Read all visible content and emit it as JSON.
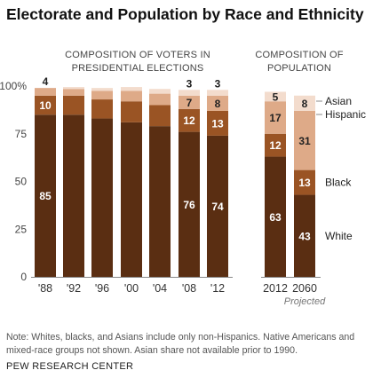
{
  "title": "Electorate and Population by Race and Ethnicity",
  "subtitle_voters": "COMPOSITION OF VOTERS IN PRESIDENTIAL ELECTIONS",
  "subtitle_population": "COMPOSITION OF POPULATION",
  "note": "Note: Whites, blacks, and Asians include only non-Hispanics. Native Americans and mixed-race groups not shown. Asian share not available prior to 1990.",
  "source": "PEW RESEARCH CENTER",
  "colors": {
    "White": "#5a2e12",
    "Black": "#9a5424",
    "Hispanic": "#deaa88",
    "Asian": "#f3dccd"
  },
  "chart_data": {
    "type": "bar",
    "stacked": true,
    "ylim": [
      0,
      100
    ],
    "yticks": [
      "0",
      "25",
      "50",
      "75",
      "100%"
    ],
    "ytick_values": [
      0,
      25,
      50,
      75,
      100
    ],
    "grid": false,
    "categories": [
      "'88",
      "'92",
      "'96",
      "'00",
      "'04",
      "'08",
      "'12",
      "2012",
      "2060"
    ],
    "category_note": {
      "2060": "Projected"
    },
    "panels": [
      {
        "subtitle": "COMPOSITION OF VOTERS IN PRESIDENTIAL ELECTIONS",
        "categories": [
          "'88",
          "'92",
          "'96",
          "'00",
          "'04",
          "'08",
          "'12"
        ]
      },
      {
        "subtitle": "COMPOSITION OF POPULATION",
        "categories": [
          "2012",
          "2060"
        ]
      }
    ],
    "series": [
      {
        "name": "White",
        "values": [
          85,
          85,
          83,
          81,
          79,
          76,
          74,
          63,
          43
        ],
        "labels": [
          "85",
          null,
          null,
          null,
          null,
          "76",
          "74",
          "63",
          "43"
        ]
      },
      {
        "name": "Black",
        "values": [
          10,
          10,
          10,
          11,
          11,
          12,
          13,
          12,
          13
        ],
        "labels": [
          "10",
          null,
          null,
          null,
          null,
          "12",
          "13",
          "12",
          "13"
        ]
      },
      {
        "name": "Hispanic",
        "values": [
          4,
          3.5,
          4.5,
          5.5,
          6,
          7,
          8,
          17,
          31
        ],
        "labels": [
          "4",
          null,
          null,
          null,
          null,
          "7",
          "8",
          "17",
          "31"
        ]
      },
      {
        "name": "Asian",
        "values": [
          0,
          1,
          1.5,
          2,
          2.5,
          3,
          3,
          5,
          8
        ],
        "labels": [
          null,
          null,
          null,
          null,
          null,
          "3",
          "3",
          "5",
          "8"
        ]
      }
    ],
    "legend": [
      "Asian",
      "Hispanic",
      "Black",
      "White"
    ]
  }
}
